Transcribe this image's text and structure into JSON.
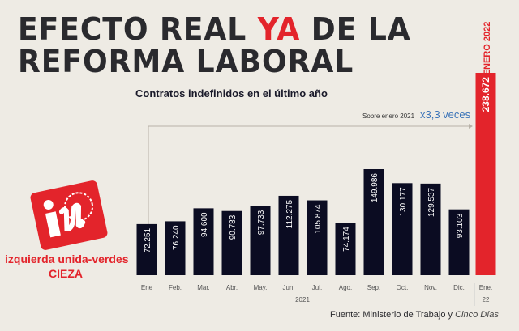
{
  "header": {
    "title_line1_pre": "EFECTO REAL ",
    "title_line1_highlight": "YA",
    "title_line1_post": " DE LA",
    "title_line2": "REFORMA LABORAL"
  },
  "logo": {
    "text": "iu",
    "org_name": "izquierda unida-verdes",
    "city": "CIEZA"
  },
  "colors": {
    "bar": "#0b0c22",
    "highlight": "#e3242b",
    "annotation": "#3a73b8",
    "background": "#eeebe4"
  },
  "chart_data": {
    "type": "bar",
    "title": "Contratos indefinidos en el último año",
    "categories": [
      "Ene",
      "Feb.",
      "Mar.",
      "Abr.",
      "May.",
      "Jun.",
      "Jul.",
      "Ago.",
      "Sep.",
      "Oct.",
      "Nov.",
      "Dic.",
      "Ene."
    ],
    "category_sublabels": [
      "",
      "",
      "",
      "",
      "",
      "",
      "",
      "",
      "",
      "",
      "",
      "",
      "22"
    ],
    "year_label": "2021",
    "values": [
      72251,
      76240,
      94600,
      90783,
      97733,
      112275,
      105874,
      74174,
      149986,
      130177,
      129537,
      93103,
      238672
    ],
    "value_labels": [
      "72.251",
      "76.240",
      "94.600",
      "90.783",
      "97.733",
      "112.275",
      "105.874",
      "74.174",
      "149.986",
      "130.177",
      "129.537",
      "93.103",
      "238.672"
    ],
    "highlight_index": 12,
    "highlight_label": "ENERO 2022",
    "annotation": {
      "text": "Sobre enero 2021",
      "value": "x3,3 veces"
    },
    "source_prefix": "Fuente: Ministerio de Trabajo y ",
    "source_italic": "Cinco Días",
    "grid": false,
    "legend": "none"
  }
}
